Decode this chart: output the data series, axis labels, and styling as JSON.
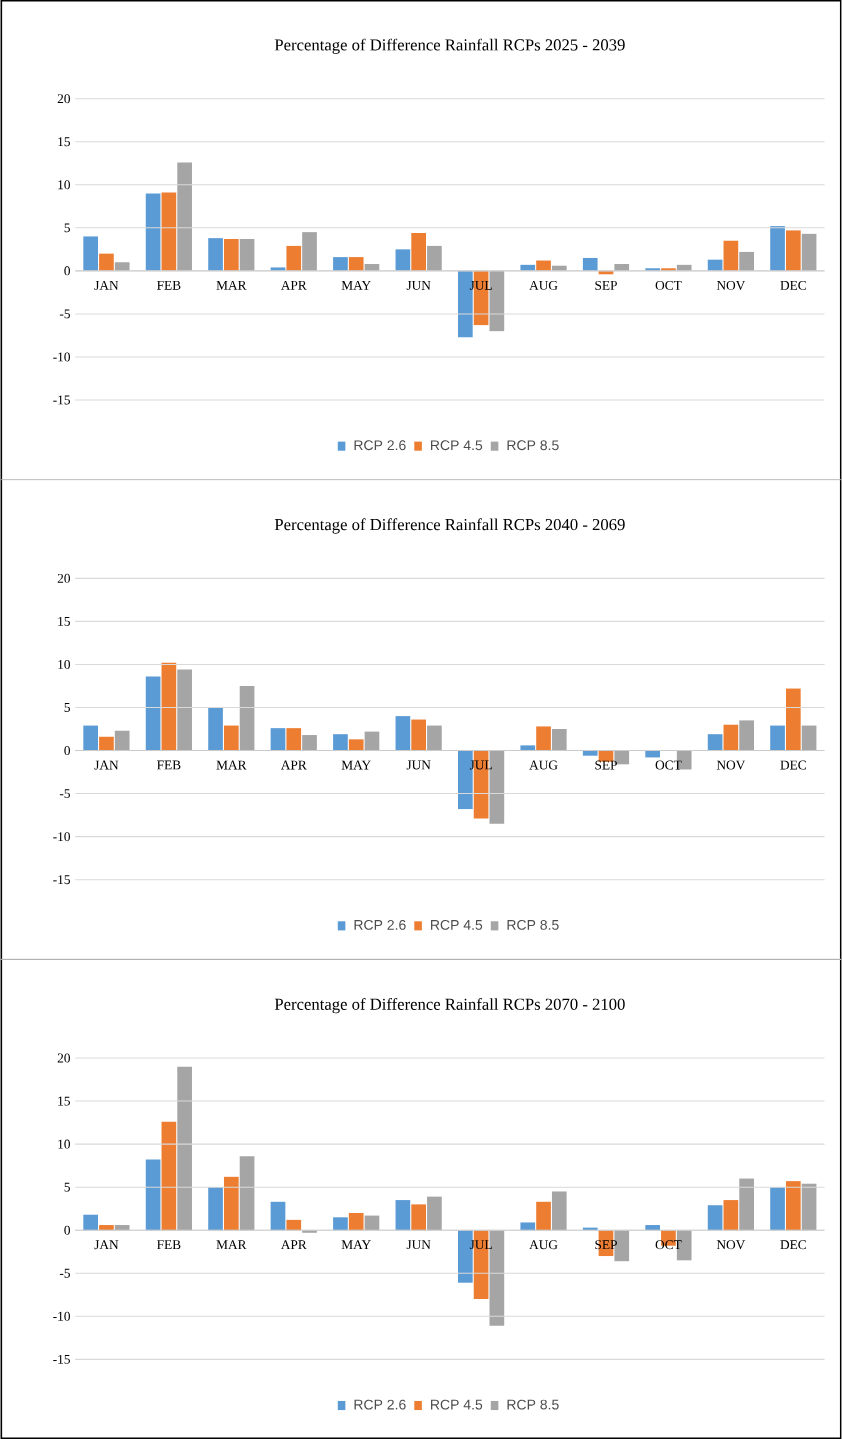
{
  "chart_data": [
    {
      "type": "bar",
      "title": "Percentage of Difference Rainfall RCPs 2025 - 2039",
      "categories": [
        "JAN",
        "FEB",
        "MAR",
        "APR",
        "MAY",
        "JUN",
        "JUL",
        "AUG",
        "SEP",
        "OCT",
        "NOV",
        "DEC"
      ],
      "ylim": [
        -15,
        20
      ],
      "yticks": [
        -15,
        -10,
        -5,
        0,
        5,
        10,
        15,
        20
      ],
      "grid": "y",
      "legend": "bottom",
      "series": [
        {
          "name": "RCP 2.6",
          "color": "#5b9bd5",
          "values": [
            4,
            9,
            3.8,
            0.4,
            1.6,
            2.5,
            -7.7,
            0.7,
            1.5,
            0.3,
            1.3,
            5.2
          ]
        },
        {
          "name": "RCP 4.5",
          "color": "#ed7d31",
          "values": [
            2,
            9.1,
            3.7,
            2.9,
            1.6,
            4.4,
            -6.3,
            1.2,
            -0.4,
            0.3,
            3.5,
            4.7
          ]
        },
        {
          "name": "RCP 8.5",
          "color": "#a5a5a5",
          "values": [
            1,
            12.6,
            3.7,
            4.5,
            0.8,
            2.9,
            -7,
            0.6,
            0.8,
            0.7,
            2.2,
            4.3
          ]
        }
      ]
    },
    {
      "type": "bar",
      "title": "Percentage of Difference Rainfall RCPs 2040 - 2069",
      "categories": [
        "JAN",
        "FEB",
        "MAR",
        "APR",
        "MAY",
        "JUN",
        "JUL",
        "AUG",
        "SEP",
        "OCT",
        "NOV",
        "DEC"
      ],
      "ylim": [
        -15,
        20
      ],
      "yticks": [
        -15,
        -10,
        -5,
        0,
        5,
        10,
        15,
        20
      ],
      "grid": "y",
      "legend": "bottom",
      "series": [
        {
          "name": "RCP 2.6",
          "color": "#5b9bd5",
          "values": [
            2.9,
            8.6,
            5,
            2.6,
            1.9,
            4,
            -6.8,
            0.6,
            -0.6,
            -0.8,
            1.9,
            2.9
          ]
        },
        {
          "name": "RCP 4.5",
          "color": "#ed7d31",
          "values": [
            1.6,
            10.2,
            2.9,
            2.6,
            1.3,
            3.6,
            -7.9,
            2.8,
            -1.3,
            0,
            3,
            7.2
          ]
        },
        {
          "name": "RCP 8.5",
          "color": "#a5a5a5",
          "values": [
            2.3,
            9.4,
            7.5,
            1.8,
            2.2,
            2.9,
            -8.5,
            2.5,
            -1.6,
            -2.2,
            3.5,
            2.9
          ]
        }
      ]
    },
    {
      "type": "bar",
      "title": "Percentage of Difference Rainfall RCPs 2070 - 2100",
      "categories": [
        "JAN",
        "FEB",
        "MAR",
        "APR",
        "MAY",
        "JUN",
        "JUL",
        "AUG",
        "SEP",
        "OCT",
        "NOV",
        "DEC"
      ],
      "ylim": [
        -15,
        20
      ],
      "yticks": [
        -15,
        -10,
        -5,
        0,
        5,
        10,
        15,
        20
      ],
      "grid": "y",
      "legend": "bottom",
      "series": [
        {
          "name": "RCP 2.6",
          "color": "#5b9bd5",
          "values": [
            1.8,
            8.2,
            5,
            3.3,
            1.5,
            3.5,
            -6.1,
            0.9,
            0.3,
            0.6,
            2.9,
            5
          ]
        },
        {
          "name": "RCP 4.5",
          "color": "#ed7d31",
          "values": [
            0.6,
            12.6,
            6.2,
            1.2,
            2,
            3,
            -8,
            3.3,
            -3,
            -1.8,
            3.5,
            5.7
          ]
        },
        {
          "name": "RCP 8.5",
          "color": "#a5a5a5",
          "values": [
            0.6,
            19,
            8.6,
            -0.3,
            1.7,
            3.9,
            -11.1,
            4.5,
            -3.6,
            -3.5,
            6,
            5.4
          ]
        }
      ]
    }
  ]
}
